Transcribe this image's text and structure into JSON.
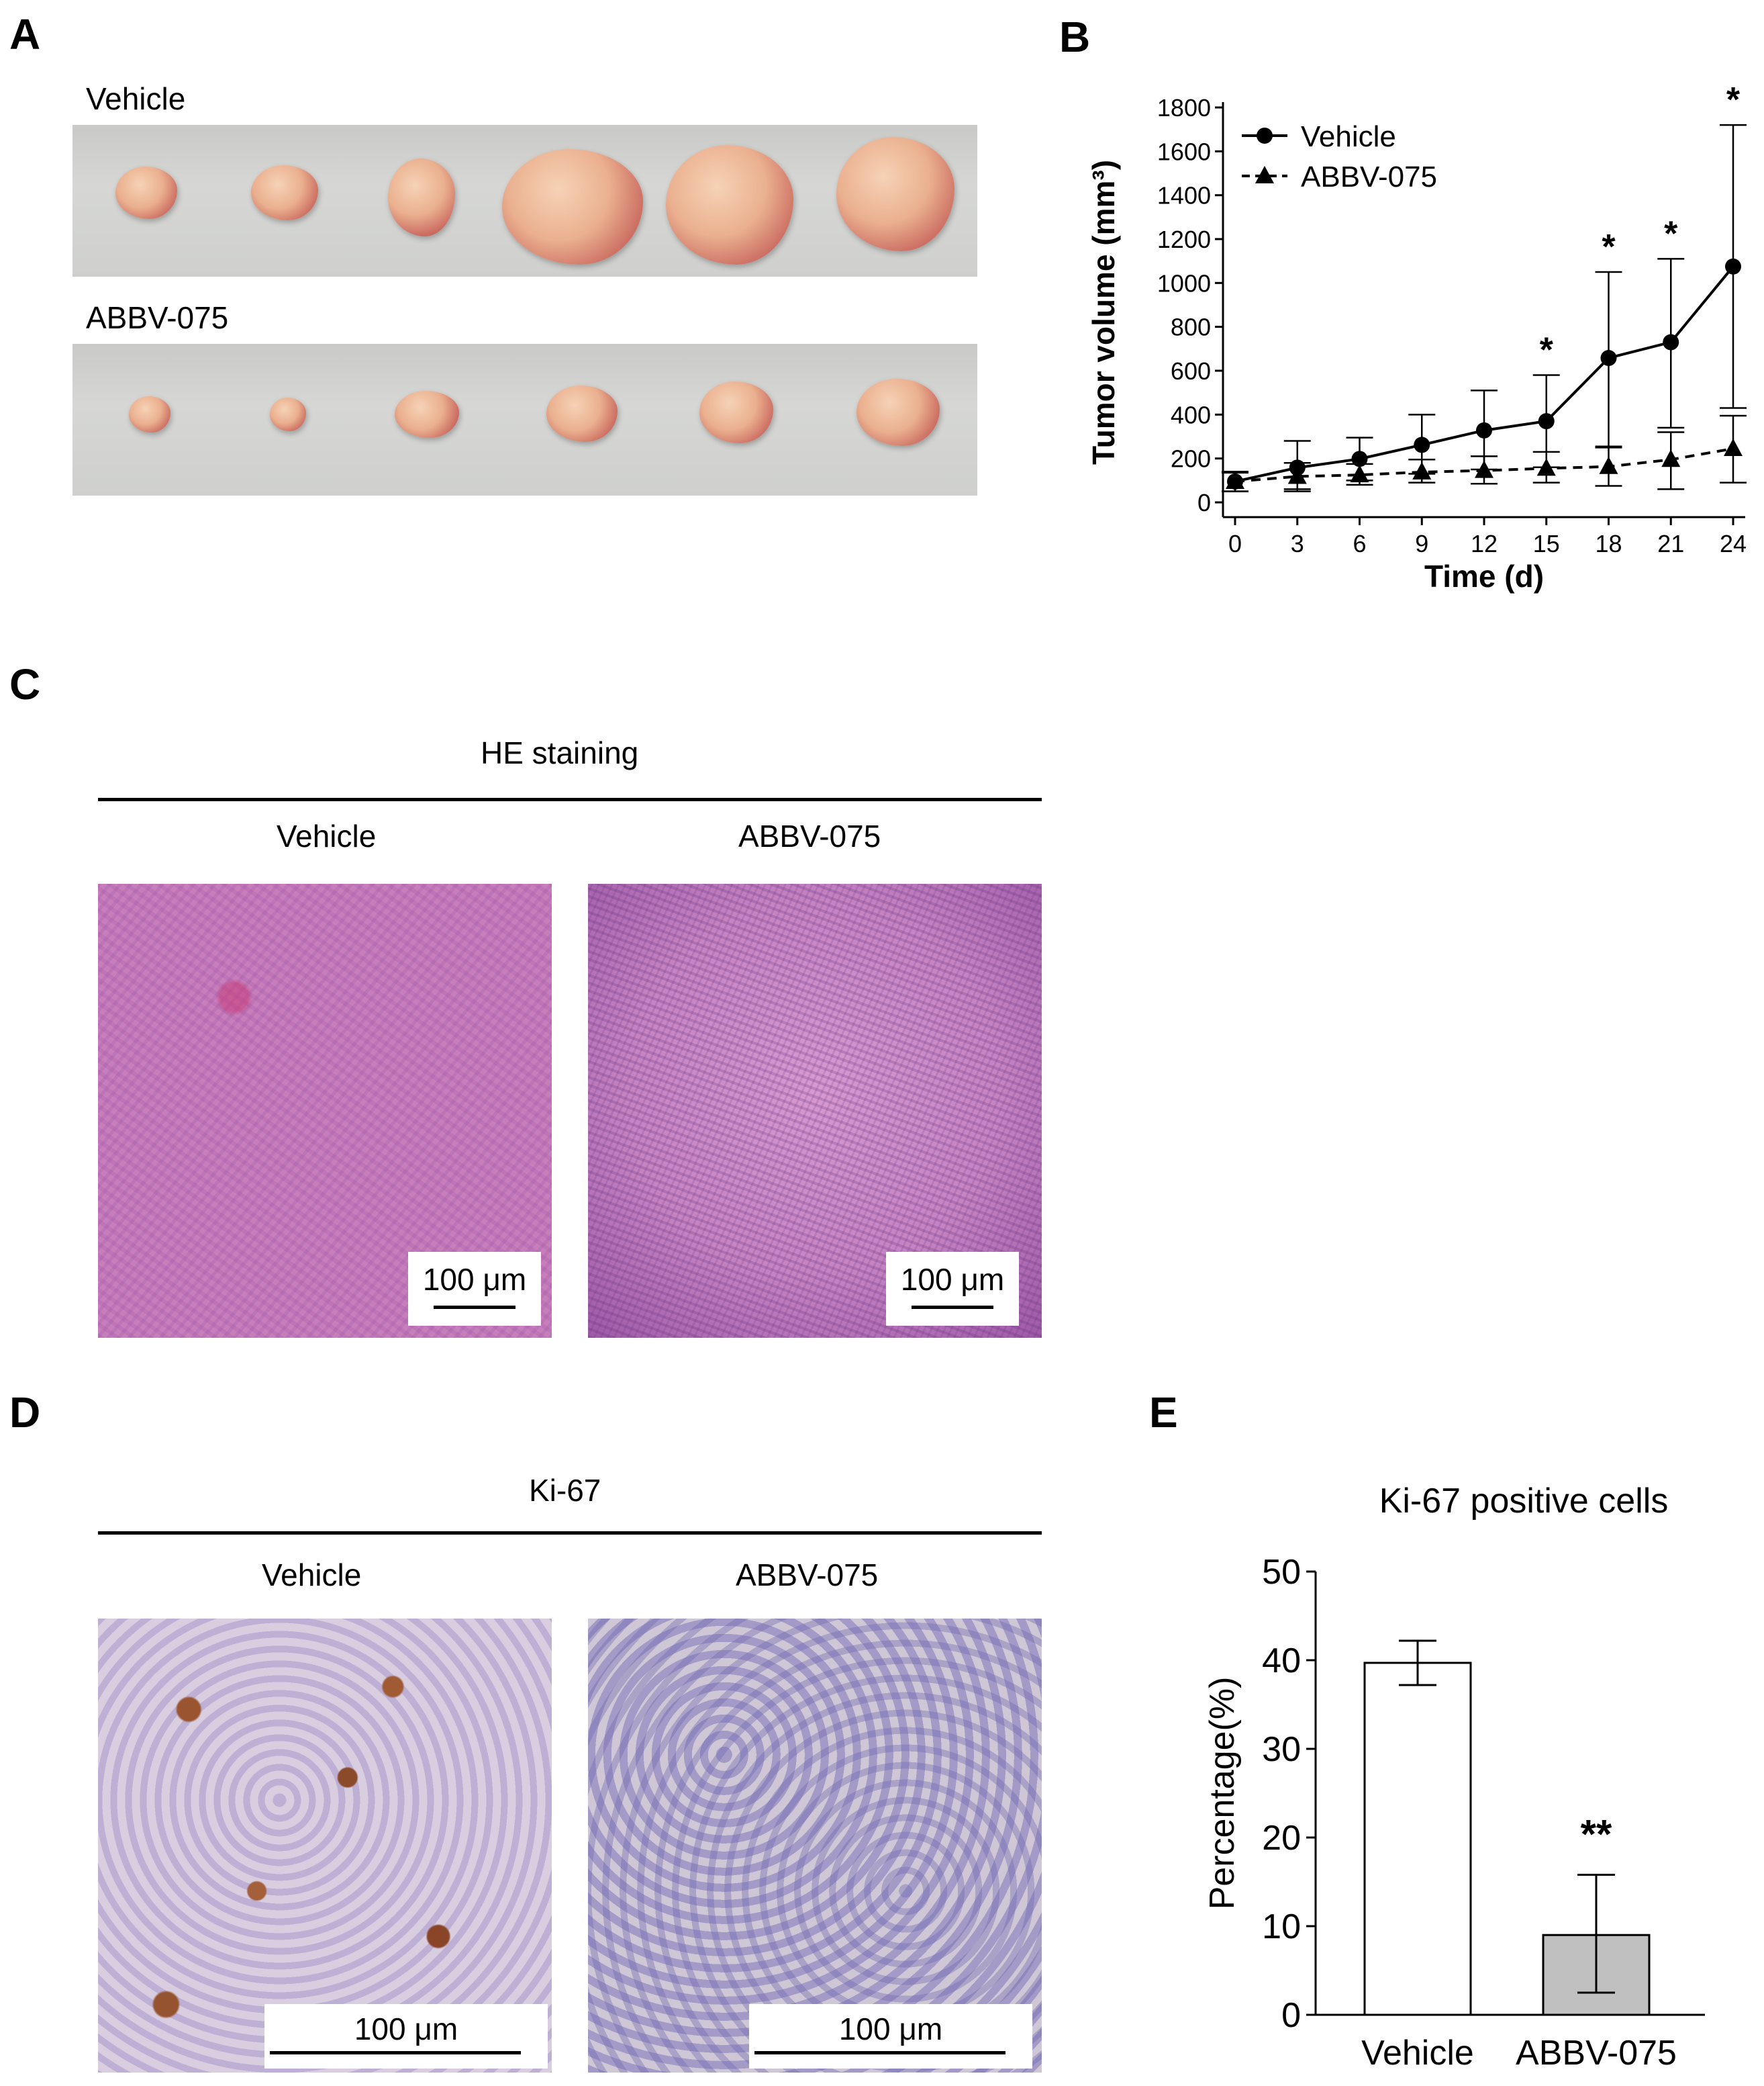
{
  "panels": {
    "a": {
      "letter": "A",
      "rows": [
        {
          "label": "Vehicle",
          "tumor_count": 6
        },
        {
          "label": "ABBV-075",
          "tumor_count": 6
        }
      ]
    },
    "b": {
      "letter": "B"
    },
    "c": {
      "letter": "C",
      "header": "HE staining",
      "images": [
        {
          "label": "Vehicle",
          "scale_bar": "100 μm"
        },
        {
          "label": "ABBV-075",
          "scale_bar": "100 μm"
        }
      ]
    },
    "d": {
      "letter": "D",
      "header": "Ki-67",
      "images": [
        {
          "label": "Vehicle",
          "scale_bar": "100 μm"
        },
        {
          "label": "ABBV-075",
          "scale_bar": "100 μm"
        }
      ]
    },
    "e": {
      "letter": "E"
    }
  },
  "chart_data": [
    {
      "type": "line",
      "panel": "B",
      "title": "",
      "xlabel": "Time (d)",
      "ylabel": "Tumor volume (mm³)",
      "x": [
        0,
        3,
        6,
        9,
        12,
        15,
        18,
        21,
        24
      ],
      "xlim": [
        0,
        24
      ],
      "ylim": [
        0,
        1800
      ],
      "yticks": [
        0,
        200,
        400,
        600,
        800,
        1000,
        1200,
        1400,
        1600,
        1800
      ],
      "legend": "top-left",
      "series": [
        {
          "name": "Vehicle",
          "marker": "circle",
          "line": "solid",
          "values": [
            95,
            158,
            198,
            262,
            328,
            370,
            658,
            730,
            1075
          ],
          "error_upper": [
            140,
            280,
            295,
            400,
            510,
            580,
            1050,
            1110,
            1720
          ],
          "error_lower": [
            50,
            50,
            100,
            130,
            150,
            160,
            250,
            340,
            430
          ]
        },
        {
          "name": "ABBV-075",
          "marker": "triangle",
          "line": "dashed",
          "values": [
            95,
            118,
            125,
            138,
            145,
            155,
            163,
            195,
            245
          ],
          "error_upper": [
            135,
            180,
            175,
            195,
            210,
            230,
            255,
            320,
            395
          ],
          "error_lower": [
            50,
            60,
            80,
            90,
            85,
            90,
            75,
            60,
            90
          ]
        }
      ],
      "annotations": [
        {
          "x": 15,
          "text": "*"
        },
        {
          "x": 18,
          "text": "*"
        },
        {
          "x": 21,
          "text": "*"
        },
        {
          "x": 24,
          "text": "*"
        }
      ]
    },
    {
      "type": "bar",
      "panel": "E",
      "title": "Ki-67 positive cells",
      "xlabel": "",
      "ylabel": "Percentage(%)",
      "categories": [
        "Vehicle",
        "ABBV-075"
      ],
      "values": [
        39.7,
        9
      ],
      "error_upper": [
        42.2,
        15.8
      ],
      "error_lower": [
        37.2,
        2.5
      ],
      "ylim": [
        0,
        50
      ],
      "yticks": [
        0,
        10,
        20,
        30,
        40,
        50
      ],
      "bar_colors": [
        "#ffffff",
        "#c0c0c0"
      ],
      "annotations": [
        {
          "category": "ABBV-075",
          "text": "**"
        }
      ]
    }
  ]
}
